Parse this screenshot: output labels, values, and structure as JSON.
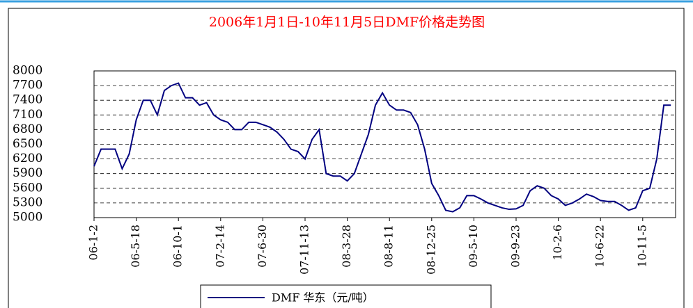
{
  "chart_data": {
    "type": "line",
    "title": "2006年1月1日-10年11月5日DMF价格走势图",
    "categories": [
      "06-1-2",
      null,
      null,
      null,
      null,
      null,
      "06-5-18",
      null,
      null,
      null,
      null,
      null,
      "06-10-1",
      null,
      null,
      null,
      null,
      null,
      "07-2-14",
      null,
      null,
      null,
      null,
      null,
      "07-6-30",
      null,
      null,
      null,
      null,
      null,
      "07-11-13",
      null,
      null,
      null,
      null,
      null,
      "08-3-28",
      null,
      null,
      null,
      null,
      null,
      "08-8-11",
      null,
      null,
      null,
      null,
      null,
      "08-12-25",
      null,
      null,
      null,
      null,
      null,
      "09-5-10",
      null,
      null,
      null,
      null,
      null,
      "09-9-23",
      null,
      null,
      null,
      null,
      null,
      "10-2-6",
      null,
      null,
      null,
      null,
      null,
      "10-6-22",
      null,
      null,
      null,
      null,
      null,
      "10-11-5",
      null,
      null,
      null,
      null
    ],
    "series": [
      {
        "name": "DMF  华东（元/吨）",
        "color": "#000080",
        "values": [
          6050,
          6400,
          6400,
          6400,
          6000,
          6300,
          7000,
          7400,
          7400,
          7100,
          7600,
          7700,
          7750,
          7450,
          7450,
          7300,
          7350,
          7100,
          7000,
          6950,
          6800,
          6800,
          6950,
          6950,
          6900,
          6850,
          6750,
          6600,
          6400,
          6350,
          6200,
          6600,
          6800,
          5900,
          5850,
          5850,
          5750,
          5900,
          6300,
          6700,
          7300,
          7550,
          7300,
          7200,
          7200,
          7150,
          6900,
          6400,
          5700,
          5450,
          5150,
          5120,
          5200,
          5450,
          5450,
          5380,
          5300,
          5250,
          5200,
          5170,
          5180,
          5250,
          5550,
          5650,
          5600,
          5450,
          5380,
          5250,
          5300,
          5380,
          5480,
          5430,
          5350,
          5330,
          5330,
          5250,
          5150,
          5200,
          5550,
          5600,
          6200,
          7300,
          7300
        ]
      }
    ],
    "ylim": [
      5000,
      8000
    ],
    "yticks": [
      5000,
      5300,
      5600,
      5900,
      6200,
      6500,
      6800,
      7100,
      7400,
      7700,
      8000
    ],
    "grid": true
  }
}
